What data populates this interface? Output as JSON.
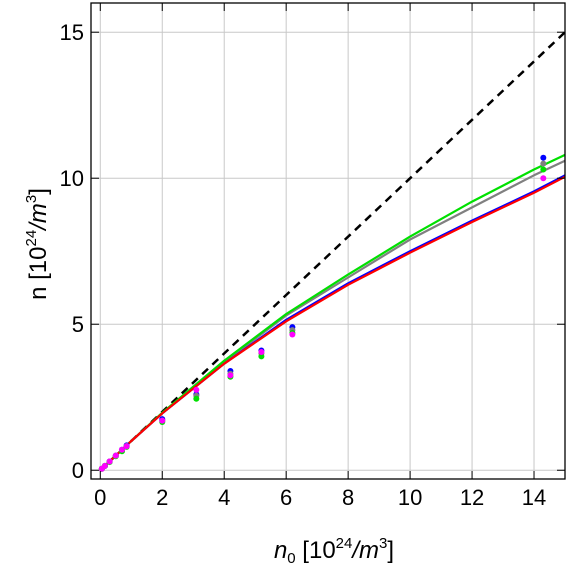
{
  "chart_data": {
    "type": "line",
    "title": "",
    "xlabel": {
      "base": "n",
      "sub": "0",
      "open": " [10",
      "exp": "24",
      "unit": "/m",
      "unit_exp": "3",
      "close": "]"
    },
    "ylabel": {
      "base": "n [10",
      "exp": "24",
      "unit": "/m",
      "unit_exp": "3",
      "close": "]"
    },
    "xlim": [
      -0.3,
      15
    ],
    "ylim": [
      -0.3,
      16
    ],
    "x_ticks": [
      0,
      2,
      4,
      6,
      8,
      10,
      12,
      14
    ],
    "y_ticks": [
      0,
      5,
      10,
      15
    ],
    "x_tick_labels": [
      "0",
      "2",
      "4",
      "6",
      "8",
      "10",
      "12",
      "14"
    ],
    "y_tick_labels": [
      "0",
      "5",
      "10",
      "15"
    ],
    "grid": true,
    "reference_line": {
      "style": "dashed",
      "color": "#000000",
      "x": [
        0,
        15
      ],
      "y": [
        0,
        15
      ]
    },
    "series": [
      {
        "kind": "line",
        "color": "#808080",
        "x": [
          0,
          1,
          2,
          4,
          6,
          8,
          10,
          12,
          14,
          15
        ],
        "y": [
          0,
          1.0,
          1.95,
          3.7,
          5.3,
          6.6,
          7.9,
          9.0,
          10.1,
          10.6
        ]
      },
      {
        "kind": "line",
        "color": "#0000ff",
        "x": [
          0,
          1,
          2,
          4,
          6,
          8,
          10,
          12,
          14,
          15
        ],
        "y": [
          0,
          1.0,
          1.95,
          3.65,
          5.15,
          6.4,
          7.5,
          8.55,
          9.55,
          10.1
        ]
      },
      {
        "kind": "line",
        "color": "#00e000",
        "x": [
          0,
          1,
          2,
          4,
          6,
          8,
          10,
          12,
          14,
          15
        ],
        "y": [
          0,
          1.0,
          1.97,
          3.75,
          5.35,
          6.7,
          8.0,
          9.2,
          10.3,
          10.8
        ]
      },
      {
        "kind": "line",
        "color": "#ff0000",
        "x": [
          0,
          1,
          2,
          4,
          6,
          8,
          10,
          12,
          14,
          15
        ],
        "y": [
          0,
          1.0,
          1.95,
          3.65,
          5.1,
          6.35,
          7.45,
          8.5,
          9.5,
          10.05
        ]
      },
      {
        "kind": "points",
        "color": "#0000ff",
        "x": [
          0.05,
          0.15,
          0.3,
          0.5,
          0.7,
          0.85,
          2.0,
          3.1,
          4.2,
          5.2,
          6.2,
          14.3
        ],
        "y": [
          0.05,
          0.15,
          0.3,
          0.5,
          0.7,
          0.85,
          1.75,
          2.6,
          3.4,
          4.1,
          4.9,
          10.7
        ]
      },
      {
        "kind": "points",
        "color": "#808080",
        "x": [
          0.05,
          0.15,
          0.3,
          0.5,
          0.7,
          0.85,
          2.0,
          3.1,
          4.2,
          5.2,
          6.2,
          14.3
        ],
        "y": [
          0.05,
          0.15,
          0.3,
          0.5,
          0.68,
          0.83,
          1.7,
          2.55,
          3.3,
          4.0,
          4.8,
          10.5
        ]
      },
      {
        "kind": "points",
        "color": "#00e000",
        "x": [
          0.05,
          0.15,
          0.3,
          0.5,
          0.7,
          0.85,
          2.0,
          3.1,
          4.2,
          5.2,
          6.2,
          14.3
        ],
        "y": [
          0.05,
          0.15,
          0.28,
          0.48,
          0.65,
          0.8,
          1.65,
          2.45,
          3.2,
          3.9,
          4.7,
          10.3
        ]
      },
      {
        "kind": "points",
        "color": "#ff00ff",
        "x": [
          0.05,
          0.15,
          0.3,
          0.5,
          0.7,
          0.85,
          2.0,
          3.1,
          4.2,
          5.2,
          6.2,
          14.3
        ],
        "y": [
          0.05,
          0.15,
          0.3,
          0.5,
          0.7,
          0.82,
          1.7,
          2.75,
          3.25,
          4.05,
          4.65,
          10.0
        ]
      }
    ]
  }
}
